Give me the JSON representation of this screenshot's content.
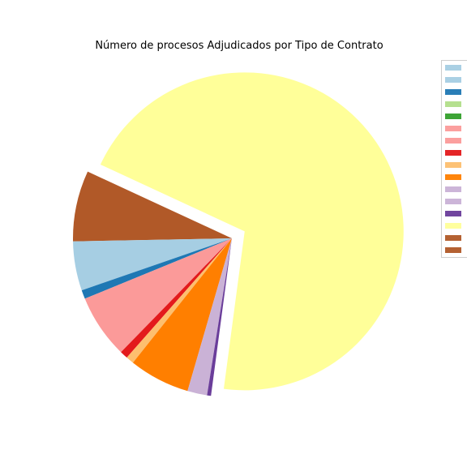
{
  "chart_data": {
    "type": "pie",
    "title": "Número de procesos Adjudicados por Tipo de Contrato",
    "legend_placement": "right, clipped at image edge (entry labels not visible)",
    "slices": [
      {
        "value": 0.3,
        "color": "#b15928",
        "exploded": false
      },
      {
        "value": 5.0,
        "color": "#a6cee3",
        "exploded": false
      },
      {
        "value": 0.9,
        "color": "#1f78b4",
        "exploded": false
      },
      {
        "value": 6.5,
        "color": "#fb9a99",
        "exploded": false
      },
      {
        "value": 0.8,
        "color": "#e31a1c",
        "exploded": false
      },
      {
        "value": 0.8,
        "color": "#fdbf6f",
        "exploded": false
      },
      {
        "value": 6.2,
        "color": "#ff7f00",
        "exploded": false
      },
      {
        "value": 2.0,
        "color": "#cab2d6",
        "exploded": false
      },
      {
        "value": 0.4,
        "color": "#6a3d9a",
        "exploded": false
      },
      {
        "value": 70.2,
        "color": "#ffff99",
        "exploded": true
      },
      {
        "value": 6.9,
        "color": "#b15928",
        "exploded": false
      }
    ],
    "legend_colors": [
      "#a6cee3",
      "#a6cee3",
      "#1f78b4",
      "#b2df8a",
      "#33a02c",
      "#fb9a99",
      "#fb9a99",
      "#e31a1c",
      "#fdbf6f",
      "#ff7f00",
      "#cab2d6",
      "#cab2d6",
      "#6a3d9a",
      "#ffff99",
      "#b15928",
      "#b15928"
    ]
  }
}
